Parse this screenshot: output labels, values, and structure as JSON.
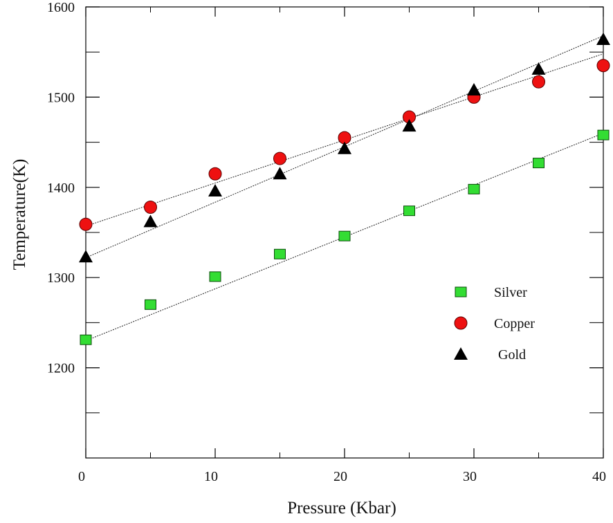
{
  "chart_data": {
    "type": "scatter",
    "title": "",
    "xlabel": "Pressure (Kbar)",
    "ylabel": "Temperature(K)",
    "xlim": [
      0,
      40
    ],
    "ylim": [
      1100,
      1600
    ],
    "x_ticks": [
      0,
      10,
      20,
      30,
      40
    ],
    "x_minor_ticks": [
      5,
      15,
      25,
      35
    ],
    "y_ticks": [
      1200,
      1300,
      1400,
      1500,
      1600
    ],
    "y_minor_ticks": [
      1150,
      1250,
      1350,
      1450,
      1550
    ],
    "grid": false,
    "legend_position": "right",
    "series": [
      {
        "name": "Silver",
        "marker": "square",
        "color": "#33dd33",
        "x": [
          0,
          5,
          10,
          15,
          20,
          25,
          30,
          35,
          40
        ],
        "y": [
          1231,
          1270,
          1301,
          1326,
          1346,
          1374,
          1398,
          1427,
          1458
        ],
        "fit": [
          1230,
          1460
        ]
      },
      {
        "name": "Copper",
        "marker": "circle",
        "color": "#ee1111",
        "x": [
          0,
          5,
          10,
          15,
          20,
          25,
          30,
          35,
          40
        ],
        "y": [
          1359,
          1378,
          1415,
          1432,
          1455,
          1478,
          1500,
          1517,
          1535
        ],
        "fit": [
          1357,
          1548
        ]
      },
      {
        "name": "Gold",
        "marker": "triangle",
        "color": "#000000",
        "x": [
          0,
          5,
          10,
          15,
          20,
          25,
          30,
          35,
          40
        ],
        "y": [
          1323,
          1362,
          1396,
          1415,
          1443,
          1468,
          1508,
          1531,
          1564
        ],
        "fit": [
          1322,
          1568
        ]
      }
    ]
  }
}
